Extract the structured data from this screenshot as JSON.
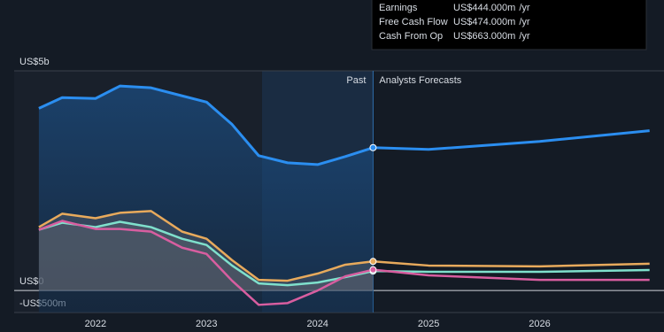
{
  "chart_data": {
    "type": "line",
    "xlim": [
      2021.14,
      2027.12
    ],
    "xticks": [
      2022,
      2023,
      2024,
      2025,
      2026
    ],
    "ylim": [
      -500,
      5000
    ],
    "yticks": [
      {
        "value": -500,
        "label": "-US$500m"
      },
      {
        "value": 0,
        "label": "US$0"
      },
      {
        "value": 5000,
        "label": "US$5b"
      }
    ],
    "past_range": [
      2023.5,
      2024.5
    ],
    "past_label": "Past",
    "forecast_label": "Analysts Forecasts",
    "tooltip_unit": "/yr",
    "x": [
      2021.49,
      2021.7,
      2022,
      2022.22,
      2022.5,
      2022.78,
      2023,
      2023.23,
      2023.47,
      2023.73,
      2024,
      2024.25,
      2024.5,
      2025,
      2026,
      2026.99
    ],
    "series": [
      {
        "color": "#2b8ef0",
        "values": [
          4146,
          4390,
          4370,
          4654,
          4614,
          4431,
          4289,
          3780,
          3069,
          2907,
          2866,
          3049,
          3252,
          3211,
          3394,
          3638
        ]
      },
      {
        "name": "Earnings",
        "color": "#7fe0cc",
        "values": [
          1382,
          1545,
          1443,
          1565,
          1443,
          1179,
          1037,
          569,
          163,
          122,
          183,
          305,
          444,
          427,
          427,
          467
        ],
        "value_labels": [
          null,
          null,
          null,
          null,
          null,
          null,
          null,
          null,
          null,
          null,
          null,
          null,
          "US$444.000m",
          null,
          null,
          null
        ]
      },
      {
        "name": "Free Cash Flow",
        "color": "#d85ea0",
        "values": [
          1382,
          1585,
          1402,
          1402,
          1341,
          976,
          833,
          224,
          -325,
          -285,
          0,
          325,
          474,
          346,
          244,
          244
        ],
        "value_labels": [
          null,
          null,
          null,
          null,
          null,
          null,
          null,
          null,
          null,
          null,
          null,
          null,
          "US$474.000m",
          null,
          null,
          null
        ]
      },
      {
        "name": "Cash From Op",
        "color": "#e8aa5c",
        "values": [
          1443,
          1748,
          1646,
          1768,
          1809,
          1341,
          1179,
          691,
          244,
          224,
          386,
          589,
          663,
          569,
          549,
          610
        ],
        "value_labels": [
          null,
          null,
          null,
          null,
          null,
          null,
          null,
          null,
          null,
          null,
          null,
          null,
          "US$663.000m",
          null,
          null,
          null
        ]
      }
    ]
  }
}
